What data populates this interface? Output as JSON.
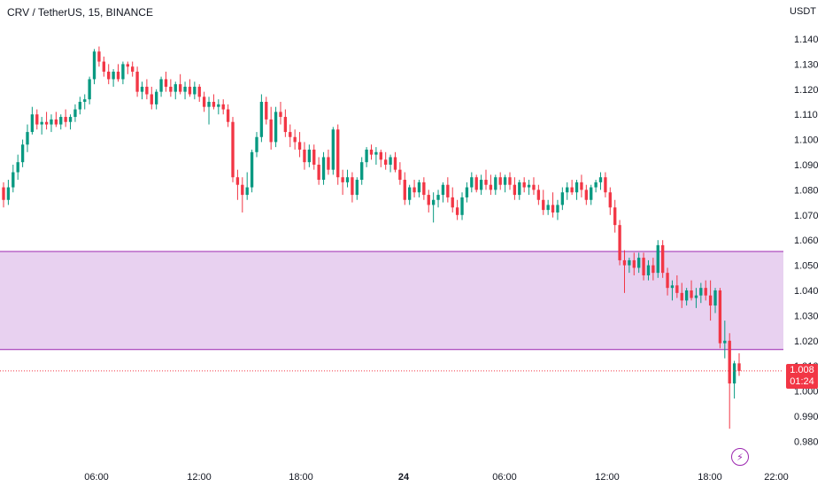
{
  "header": {
    "symbol_line": "CRV / TetherUS, 15, BINANCE",
    "currency": "USDT"
  },
  "price_axis": {
    "ticks": [
      "1.140",
      "1.130",
      "1.120",
      "1.110",
      "1.100",
      "1.090",
      "1.080",
      "1.070",
      "1.060",
      "1.050",
      "1.040",
      "1.030",
      "1.020",
      "1.010",
      "1.000",
      "0.990",
      "0.980"
    ]
  },
  "time_axis": {
    "ticks": [
      "06:00",
      "12:00",
      "18:00",
      "24",
      "06:00",
      "12:00",
      "18:00",
      "22:00"
    ]
  },
  "last_price": {
    "value": "1.008",
    "countdown": "01:24"
  },
  "colors": {
    "up": "#089981",
    "down": "#f23645",
    "zone_fill": "#e8d1f0",
    "zone_line": "#9c27b0",
    "background": "#ffffff"
  },
  "icons": {
    "alert": "lightning-icon"
  },
  "chart_data": {
    "type": "candlestick",
    "title": "CRV / TetherUS, 15, BINANCE",
    "ylabel": "USDT",
    "ylim": [
      0.975,
      1.147
    ],
    "grid": false,
    "zones": [
      {
        "from": 1.0165,
        "to": 1.0555
      }
    ],
    "last_price": 1.008,
    "candles": [
      [
        1.081,
        1.083,
        1.073,
        1.076
      ],
      [
        1.076,
        1.084,
        1.074,
        1.081
      ],
      [
        1.081,
        1.09,
        1.079,
        1.087
      ],
      [
        1.087,
        1.094,
        1.084,
        1.091
      ],
      [
        1.091,
        1.1,
        1.089,
        1.098
      ],
      [
        1.098,
        1.106,
        1.095,
        1.103
      ],
      [
        1.103,
        1.113,
        1.102,
        1.11
      ],
      [
        1.11,
        1.112,
        1.104,
        1.106
      ],
      [
        1.106,
        1.109,
        1.102,
        1.107
      ],
      [
        1.107,
        1.111,
        1.104,
        1.106
      ],
      [
        1.106,
        1.11,
        1.103,
        1.108
      ],
      [
        1.108,
        1.111,
        1.105,
        1.106
      ],
      [
        1.106,
        1.11,
        1.104,
        1.109
      ],
      [
        1.109,
        1.112,
        1.105,
        1.107
      ],
      [
        1.107,
        1.11,
        1.104,
        1.109
      ],
      [
        1.109,
        1.114,
        1.107,
        1.112
      ],
      [
        1.112,
        1.117,
        1.11,
        1.115
      ],
      [
        1.115,
        1.118,
        1.112,
        1.116
      ],
      [
        1.116,
        1.125,
        1.114,
        1.124
      ],
      [
        1.124,
        1.136,
        1.122,
        1.135
      ],
      [
        1.135,
        1.137,
        1.129,
        1.131
      ],
      [
        1.131,
        1.133,
        1.125,
        1.127
      ],
      [
        1.127,
        1.13,
        1.122,
        1.124
      ],
      [
        1.124,
        1.128,
        1.121,
        1.127
      ],
      [
        1.127,
        1.13,
        1.123,
        1.124
      ],
      [
        1.124,
        1.131,
        1.122,
        1.13
      ],
      [
        1.13,
        1.131,
        1.126,
        1.129
      ],
      [
        1.129,
        1.131,
        1.125,
        1.127
      ],
      [
        1.127,
        1.129,
        1.117,
        1.119
      ],
      [
        1.119,
        1.123,
        1.116,
        1.121
      ],
      [
        1.121,
        1.124,
        1.116,
        1.118
      ],
      [
        1.118,
        1.121,
        1.112,
        1.114
      ],
      [
        1.114,
        1.12,
        1.112,
        1.119
      ],
      [
        1.119,
        1.125,
        1.117,
        1.124
      ],
      [
        1.124,
        1.127,
        1.119,
        1.121
      ],
      [
        1.121,
        1.124,
        1.117,
        1.119
      ],
      [
        1.119,
        1.123,
        1.116,
        1.122
      ],
      [
        1.122,
        1.126,
        1.118,
        1.119
      ],
      [
        1.119,
        1.123,
        1.116,
        1.121
      ],
      [
        1.121,
        1.124,
        1.117,
        1.118
      ],
      [
        1.118,
        1.123,
        1.116,
        1.121
      ],
      [
        1.121,
        1.122,
        1.115,
        1.117
      ],
      [
        1.117,
        1.119,
        1.111,
        1.113
      ],
      [
        1.113,
        1.117,
        1.106,
        1.115
      ],
      [
        1.115,
        1.118,
        1.112,
        1.113
      ],
      [
        1.113,
        1.116,
        1.11,
        1.114
      ],
      [
        1.114,
        1.116,
        1.11,
        1.112
      ],
      [
        1.112,
        1.114,
        1.105,
        1.107
      ],
      [
        1.107,
        1.109,
        1.083,
        1.085
      ],
      [
        1.085,
        1.088,
        1.076,
        1.082
      ],
      [
        1.082,
        1.085,
        1.071,
        1.078
      ],
      [
        1.078,
        1.087,
        1.076,
        1.081
      ],
      [
        1.081,
        1.096,
        1.079,
        1.095
      ],
      [
        1.095,
        1.103,
        1.093,
        1.101
      ],
      [
        1.101,
        1.118,
        1.099,
        1.115
      ],
      [
        1.115,
        1.117,
        1.106,
        1.108
      ],
      [
        1.108,
        1.113,
        1.096,
        1.099
      ],
      [
        1.099,
        1.113,
        1.097,
        1.111
      ],
      [
        1.111,
        1.115,
        1.106,
        1.109
      ],
      [
        1.109,
        1.112,
        1.101,
        1.103
      ],
      [
        1.103,
        1.106,
        1.097,
        1.101
      ],
      [
        1.101,
        1.104,
        1.096,
        1.099
      ],
      [
        1.099,
        1.103,
        1.093,
        1.096
      ],
      [
        1.096,
        1.099,
        1.088,
        1.091
      ],
      [
        1.091,
        1.098,
        1.089,
        1.096
      ],
      [
        1.096,
        1.098,
        1.088,
        1.09
      ],
      [
        1.09,
        1.093,
        1.082,
        1.084
      ],
      [
        1.084,
        1.095,
        1.082,
        1.093
      ],
      [
        1.093,
        1.096,
        1.086,
        1.088
      ],
      [
        1.088,
        1.105,
        1.086,
        1.104
      ],
      [
        1.104,
        1.106,
        1.082,
        1.085
      ],
      [
        1.085,
        1.088,
        1.078,
        1.083
      ],
      [
        1.083,
        1.088,
        1.081,
        1.085
      ],
      [
        1.085,
        1.087,
        1.075,
        1.078
      ],
      [
        1.078,
        1.085,
        1.076,
        1.084
      ],
      [
        1.084,
        1.093,
        1.082,
        1.091
      ],
      [
        1.091,
        1.097,
        1.089,
        1.096
      ],
      [
        1.096,
        1.098,
        1.092,
        1.094
      ],
      [
        1.094,
        1.097,
        1.09,
        1.095
      ],
      [
        1.095,
        1.096,
        1.089,
        1.092
      ],
      [
        1.092,
        1.095,
        1.088,
        1.09
      ],
      [
        1.09,
        1.094,
        1.087,
        1.093
      ],
      [
        1.093,
        1.095,
        1.087,
        1.088
      ],
      [
        1.088,
        1.091,
        1.082,
        1.084
      ],
      [
        1.084,
        1.087,
        1.074,
        1.076
      ],
      [
        1.076,
        1.082,
        1.074,
        1.081
      ],
      [
        1.081,
        1.084,
        1.077,
        1.079
      ],
      [
        1.079,
        1.084,
        1.077,
        1.083
      ],
      [
        1.083,
        1.085,
        1.076,
        1.078
      ],
      [
        1.078,
        1.08,
        1.071,
        1.074
      ],
      [
        1.074,
        1.079,
        1.067,
        1.076
      ],
      [
        1.076,
        1.08,
        1.073,
        1.078
      ],
      [
        1.078,
        1.083,
        1.075,
        1.082
      ],
      [
        1.082,
        1.085,
        1.075,
        1.077
      ],
      [
        1.077,
        1.081,
        1.071,
        1.073
      ],
      [
        1.073,
        1.076,
        1.068,
        1.07
      ],
      [
        1.07,
        1.079,
        1.068,
        1.077
      ],
      [
        1.077,
        1.083,
        1.075,
        1.081
      ],
      [
        1.081,
        1.087,
        1.079,
        1.085
      ],
      [
        1.085,
        1.086,
        1.079,
        1.08
      ],
      [
        1.08,
        1.086,
        1.078,
        1.084
      ],
      [
        1.084,
        1.088,
        1.08,
        1.082
      ],
      [
        1.082,
        1.086,
        1.078,
        1.08
      ],
      [
        1.08,
        1.086,
        1.078,
        1.085
      ],
      [
        1.085,
        1.087,
        1.08,
        1.082
      ],
      [
        1.082,
        1.086,
        1.079,
        1.085
      ],
      [
        1.085,
        1.087,
        1.08,
        1.082
      ],
      [
        1.082,
        1.085,
        1.076,
        1.078
      ],
      [
        1.078,
        1.084,
        1.076,
        1.083
      ],
      [
        1.083,
        1.085,
        1.079,
        1.081
      ],
      [
        1.081,
        1.084,
        1.078,
        1.082
      ],
      [
        1.082,
        1.085,
        1.078,
        1.08
      ],
      [
        1.08,
        1.082,
        1.074,
        1.076
      ],
      [
        1.076,
        1.08,
        1.07,
        1.072
      ],
      [
        1.072,
        1.076,
        1.07,
        1.074
      ],
      [
        1.074,
        1.079,
        1.069,
        1.071
      ],
      [
        1.071,
        1.076,
        1.068,
        1.074
      ],
      [
        1.074,
        1.081,
        1.072,
        1.079
      ],
      [
        1.079,
        1.083,
        1.076,
        1.081
      ],
      [
        1.081,
        1.084,
        1.078,
        1.079
      ],
      [
        1.079,
        1.084,
        1.076,
        1.083
      ],
      [
        1.083,
        1.086,
        1.077,
        1.08
      ],
      [
        1.08,
        1.082,
        1.074,
        1.076
      ],
      [
        1.076,
        1.082,
        1.074,
        1.081
      ],
      [
        1.081,
        1.084,
        1.079,
        1.083
      ],
      [
        1.083,
        1.087,
        1.08,
        1.085
      ],
      [
        1.085,
        1.087,
        1.077,
        1.079
      ],
      [
        1.079,
        1.081,
        1.07,
        1.073
      ],
      [
        1.073,
        1.076,
        1.063,
        1.066
      ],
      [
        1.066,
        1.068,
        1.05,
        1.052
      ],
      [
        1.052,
        1.056,
        1.039,
        1.05
      ],
      [
        1.05,
        1.053,
        1.047,
        1.052
      ],
      [
        1.052,
        1.055,
        1.046,
        1.049
      ],
      [
        1.049,
        1.055,
        1.047,
        1.053
      ],
      [
        1.053,
        1.055,
        1.044,
        1.046
      ],
      [
        1.046,
        1.052,
        1.044,
        1.05
      ],
      [
        1.05,
        1.053,
        1.044,
        1.047
      ],
      [
        1.047,
        1.06,
        1.045,
        1.058
      ],
      [
        1.058,
        1.06,
        1.045,
        1.047
      ],
      [
        1.047,
        1.049,
        1.038,
        1.041
      ],
      [
        1.041,
        1.044,
        1.036,
        1.042
      ],
      [
        1.042,
        1.046,
        1.037,
        1.039
      ],
      [
        1.039,
        1.043,
        1.033,
        1.036
      ],
      [
        1.036,
        1.041,
        1.034,
        1.04
      ],
      [
        1.04,
        1.044,
        1.036,
        1.037
      ],
      [
        1.037,
        1.041,
        1.033,
        1.038
      ],
      [
        1.038,
        1.043,
        1.035,
        1.041
      ],
      [
        1.041,
        1.044,
        1.036,
        1.038
      ],
      [
        1.038,
        1.044,
        1.028,
        1.034
      ],
      [
        1.034,
        1.041,
        1.031,
        1.04
      ],
      [
        1.04,
        1.041,
        1.017,
        1.019
      ],
      [
        1.019,
        1.028,
        1.013,
        1.02
      ],
      [
        1.02,
        1.023,
        0.985,
        1.003
      ],
      [
        1.003,
        1.012,
        0.997,
        1.011
      ],
      [
        1.011,
        1.015,
        1.006,
        1.008
      ]
    ]
  }
}
